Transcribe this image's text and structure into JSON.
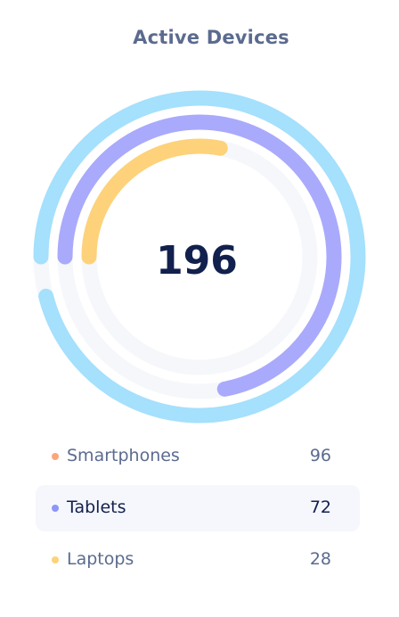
{
  "title": "Active Devices",
  "total": "196",
  "chart_data": {
    "type": "radial-bar",
    "title": "Active Devices",
    "total": 196,
    "max": 100,
    "series": [
      {
        "name": "Smartphones",
        "value": 96,
        "color": "#a5e0fc",
        "track_color": "#f5f7fb"
      },
      {
        "name": "Tablets",
        "value": 72,
        "color": "#a9aafc",
        "track_color": "#f5f7fb"
      },
      {
        "name": "Laptops",
        "value": 28,
        "color": "#fdd27a",
        "track_color": "#f5f7fb"
      }
    ]
  },
  "legend": {
    "items": [
      {
        "label": "Smartphones",
        "value": "96",
        "color": "#fba67a",
        "active": false
      },
      {
        "label": "Tablets",
        "value": "72",
        "color": "#8e95f9",
        "active": true
      },
      {
        "label": "Laptops",
        "value": "28",
        "color": "#fdd27a",
        "active": false
      }
    ]
  }
}
